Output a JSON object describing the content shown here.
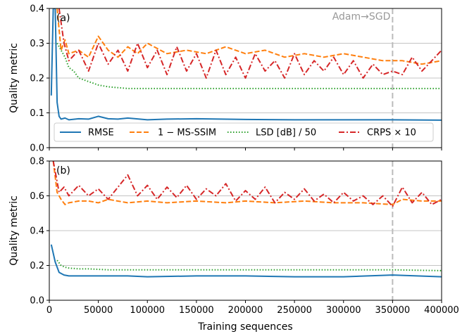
{
  "chart_data": {
    "type": "line",
    "xlabel": "Training sequences",
    "xlim": [
      0,
      400000
    ],
    "xticks": [
      0,
      50000,
      100000,
      150000,
      200000,
      250000,
      300000,
      350000,
      400000
    ],
    "xtick_labels": [
      "0",
      "50000",
      "100000",
      "150000",
      "200000",
      "250000",
      "300000",
      "350000",
      "400000"
    ],
    "grid": "horizontal",
    "annotation": {
      "text": "Adam→SGD",
      "x": 350000
    },
    "series_styles": [
      {
        "key": "rmse",
        "color": "#1f77b4",
        "dash": "solid"
      },
      {
        "key": "msssim",
        "color": "#ff7f0e",
        "dash": "dashed"
      },
      {
        "key": "lsd",
        "color": "#2ca02c",
        "dash": "dotted"
      },
      {
        "key": "crps",
        "color": "#d62728",
        "dash": "dashdot"
      }
    ],
    "legend": {
      "location": "bottom of panel (a)",
      "entries": [
        "RMSE",
        "1 − MS-SSIM",
        "LSD [dB] / 50",
        "CRPS × 10"
      ]
    },
    "panels": [
      {
        "label": "(a)",
        "ylabel": "Quality metric",
        "ylim": [
          0,
          0.4
        ],
        "yticks": [
          0.0,
          0.1,
          0.2,
          0.3,
          0.4
        ],
        "ytick_labels": [
          "0.0",
          "0.1",
          "0.2",
          "0.3",
          "0.4"
        ],
        "series": [
          {
            "name": "RMSE",
            "x": [
              2000,
              4000,
              6000,
              8000,
              10000,
              12000,
              16000,
              20000,
              30000,
              40000,
              50000,
              60000,
              70000,
              80000,
              100000,
              120000,
              150000,
              200000,
              250000,
              300000,
              350000,
              400000
            ],
            "y": [
              0.15,
              0.4,
              0.4,
              0.13,
              0.09,
              0.082,
              0.085,
              0.08,
              0.083,
              0.082,
              0.09,
              0.083,
              0.082,
              0.085,
              0.08,
              0.082,
              0.083,
              0.081,
              0.08,
              0.08,
              0.08,
              0.079
            ]
          },
          {
            "name": "1 − MS-SSIM",
            "x": [
              8000,
              12000,
              16000,
              20000,
              30000,
              40000,
              50000,
              60000,
              70000,
              80000,
              90000,
              100000,
              120000,
              140000,
              160000,
              180000,
              200000,
              220000,
              240000,
              260000,
              280000,
              300000,
              320000,
              340000,
              360000,
              380000,
              400000
            ],
            "y": [
              0.4,
              0.28,
              0.31,
              0.27,
              0.28,
              0.26,
              0.32,
              0.28,
              0.26,
              0.29,
              0.27,
              0.3,
              0.27,
              0.28,
              0.27,
              0.29,
              0.27,
              0.28,
              0.26,
              0.27,
              0.26,
              0.27,
              0.26,
              0.25,
              0.25,
              0.24,
              0.25
            ]
          },
          {
            "name": "LSD [dB] / 50",
            "x": [
              8000,
              12000,
              16000,
              20000,
              25000,
              30000,
              40000,
              50000,
              60000,
              80000,
              100000,
              130000,
              160000,
              200000,
              250000,
              300000,
              350000,
              400000
            ],
            "y": [
              0.3,
              0.28,
              0.26,
              0.23,
              0.22,
              0.2,
              0.19,
              0.18,
              0.175,
              0.17,
              0.17,
              0.17,
              0.17,
              0.17,
              0.17,
              0.17,
              0.17,
              0.17
            ]
          },
          {
            "name": "CRPS × 10",
            "x": [
              10000,
              15000,
              20000,
              30000,
              40000,
              50000,
              60000,
              70000,
              80000,
              90000,
              100000,
              110000,
              120000,
              130000,
              140000,
              150000,
              160000,
              170000,
              180000,
              190000,
              200000,
              210000,
              220000,
              230000,
              240000,
              250000,
              260000,
              270000,
              280000,
              290000,
              300000,
              310000,
              320000,
              330000,
              340000,
              350000,
              360000,
              370000,
              380000,
              390000,
              400000
            ],
            "y": [
              0.4,
              0.3,
              0.25,
              0.28,
              0.22,
              0.3,
              0.24,
              0.28,
              0.22,
              0.3,
              0.23,
              0.28,
              0.21,
              0.29,
              0.22,
              0.27,
              0.2,
              0.28,
              0.21,
              0.26,
              0.2,
              0.27,
              0.22,
              0.25,
              0.2,
              0.27,
              0.21,
              0.25,
              0.22,
              0.26,
              0.21,
              0.25,
              0.2,
              0.24,
              0.21,
              0.22,
              0.21,
              0.26,
              0.22,
              0.25,
              0.28
            ]
          }
        ]
      },
      {
        "label": "(b)",
        "ylabel": "Quality metric",
        "ylim": [
          0,
          0.8
        ],
        "yticks": [
          0.0,
          0.2,
          0.4,
          0.6,
          0.8
        ],
        "ytick_labels": [
          "0.0",
          "0.2",
          "0.4",
          "0.6",
          "0.8"
        ],
        "series": [
          {
            "name": "RMSE",
            "x": [
              2000,
              6000,
              10000,
              15000,
              20000,
              30000,
              40000,
              60000,
              80000,
              100000,
              150000,
              200000,
              250000,
              300000,
              350000,
              400000
            ],
            "y": [
              0.32,
              0.22,
              0.16,
              0.145,
              0.14,
              0.14,
              0.14,
              0.14,
              0.14,
              0.135,
              0.14,
              0.14,
              0.135,
              0.135,
              0.145,
              0.135
            ]
          },
          {
            "name": "1 − MS-SSIM",
            "x": [
              4000,
              8000,
              12000,
              16000,
              20000,
              30000,
              40000,
              50000,
              60000,
              80000,
              100000,
              120000,
              150000,
              180000,
              200000,
              230000,
              260000,
              290000,
              320000,
              350000,
              360000,
              380000,
              400000
            ],
            "y": [
              0.8,
              0.62,
              0.58,
              0.55,
              0.56,
              0.57,
              0.57,
              0.56,
              0.58,
              0.56,
              0.57,
              0.56,
              0.57,
              0.56,
              0.57,
              0.56,
              0.57,
              0.56,
              0.56,
              0.55,
              0.58,
              0.57,
              0.57
            ]
          },
          {
            "name": "LSD [dB] / 50",
            "x": [
              8000,
              12000,
              16000,
              20000,
              30000,
              40000,
              60000,
              80000,
              100000,
              150000,
              200000,
              250000,
              300000,
              350000,
              400000
            ],
            "y": [
              0.23,
              0.2,
              0.19,
              0.185,
              0.18,
              0.18,
              0.175,
              0.175,
              0.175,
              0.175,
              0.175,
              0.175,
              0.175,
              0.175,
              0.17
            ]
          },
          {
            "name": "CRPS × 10",
            "x": [
              4000,
              10000,
              15000,
              20000,
              30000,
              40000,
              50000,
              60000,
              70000,
              80000,
              90000,
              100000,
              110000,
              120000,
              130000,
              140000,
              150000,
              160000,
              170000,
              180000,
              190000,
              200000,
              210000,
              220000,
              230000,
              240000,
              250000,
              260000,
              270000,
              280000,
              290000,
              300000,
              310000,
              320000,
              330000,
              340000,
              350000,
              360000,
              370000,
              380000,
              390000,
              400000
            ],
            "y": [
              0.8,
              0.62,
              0.65,
              0.6,
              0.66,
              0.6,
              0.64,
              0.58,
              0.65,
              0.72,
              0.6,
              0.66,
              0.58,
              0.65,
              0.59,
              0.66,
              0.58,
              0.64,
              0.6,
              0.67,
              0.57,
              0.63,
              0.58,
              0.65,
              0.56,
              0.62,
              0.58,
              0.64,
              0.57,
              0.61,
              0.56,
              0.62,
              0.57,
              0.6,
              0.55,
              0.6,
              0.54,
              0.65,
              0.56,
              0.62,
              0.55,
              0.58
            ]
          }
        ]
      }
    ]
  }
}
